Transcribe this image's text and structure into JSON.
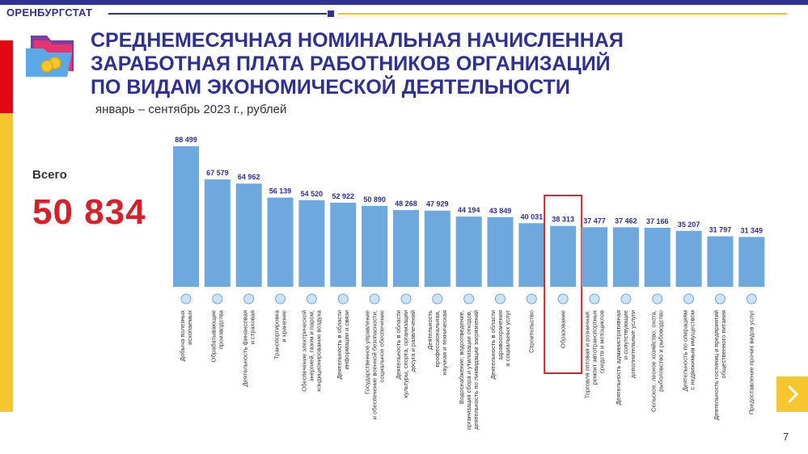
{
  "header": {
    "brand": "ОРЕНБУРГСТАТ",
    "title_line1": "СРЕДНЕМЕСЯЧНАЯ НОМИНАЛЬНАЯ НАЧИСЛЕННАЯ",
    "title_line2": "ЗАРАБОТНАЯ ПЛАТА РАБОТНИКОВ ОРГАНИЗАЦИЙ",
    "title_line3": "ПО ВИДАМ ЭКОНОМИЧЕСКОЙ ДЕЯТЕЛЬНОСТИ",
    "subtitle": "январь – сентябрь 2023 г., рублей"
  },
  "total": {
    "label": "Всего",
    "value": "50 834"
  },
  "page_number": "7",
  "colors": {
    "bar": "#6fa8dc",
    "title": "#2e3192",
    "total": "#d2232a",
    "highlight": "#d2232a",
    "accent": "#f7c52e"
  },
  "icons": [
    "folder-coins-icon",
    "chevron-right-icon"
  ],
  "chart_data": {
    "type": "bar",
    "highlighted_category": "Образование",
    "ylim": [
      0,
      90000
    ],
    "categories": [
      [
        "Добыча полезных",
        "ископаемых"
      ],
      [
        "Обрабатывающие",
        "производства"
      ],
      [
        "Деятельность финансовая",
        "и страховая"
      ],
      [
        "Транспортировка",
        "и хранение"
      ],
      [
        "Обеспечение электрической",
        "энергией, газом и паром;",
        "кондиционирование воздуха"
      ],
      [
        "Деятельность в области",
        "информации и связи"
      ],
      [
        "Государственное управление",
        "и обеспечение военной безопасности;",
        "социальное обеспечение"
      ],
      [
        "Деятельность в области",
        "культуры, спорта, организации",
        "досуга и развлечений"
      ],
      [
        "Деятельность",
        "профессиональная,",
        "научная и техническая"
      ],
      [
        "Водоснабжение; водоотведение,",
        "организация сбора и утилизации отходов,",
        "деятельность по ликвидации загрязнений"
      ],
      [
        "Деятельность в области",
        "здравоохранения",
        "и социальных услуг"
      ],
      [
        "Строительство"
      ],
      [
        "Образование"
      ],
      [
        "Торговля оптовая и розничная;",
        "ремонт автотранспортных",
        "средств и мотоциклов"
      ],
      [
        "Деятельность административная",
        "и сопутствующие",
        "дополнительные услуги"
      ],
      [
        "Сельское, лесное хозяйство, охота,",
        "рыболовство и рыбоводство"
      ],
      [
        "Деятельность по операциям",
        "с недвижимым имуществом"
      ],
      [
        "Деятельность гостиниц и предприятий",
        "общественного питания"
      ],
      [
        "Предоставление прочих видов услуг"
      ]
    ],
    "values": [
      88499,
      67579,
      64962,
      56139,
      54520,
      52922,
      50890,
      48268,
      47929,
      44194,
      43849,
      40031,
      38313,
      37477,
      37462,
      37166,
      35207,
      31797,
      31349
    ],
    "value_labels": [
      "88 499",
      "67 579",
      "64 962",
      "56 139",
      "54 520",
      "52 922",
      "50 890",
      "48 268",
      "47 929",
      "44 194",
      "43 849",
      "40 031",
      "38 313",
      "37 477",
      "37 462",
      "37 166",
      "35 207",
      "31 797",
      "31 349"
    ]
  }
}
